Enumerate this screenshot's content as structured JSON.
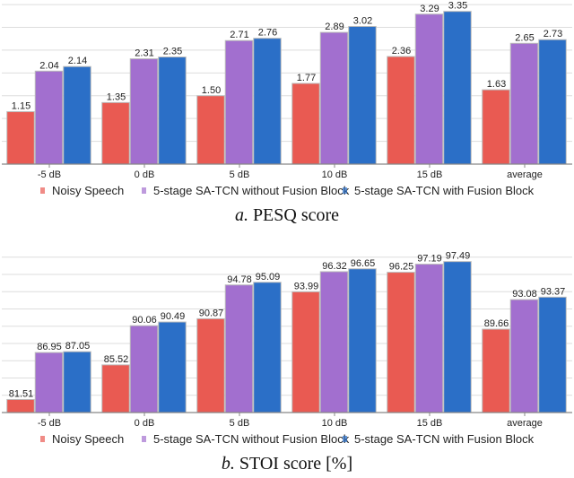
{
  "colors": {
    "Noisy Speech": "#e95a52",
    "without": "#a26fcf",
    "with": "#2b6fc7",
    "grid": "#dddddd",
    "axis": "#888888"
  },
  "chart_data": [
    {
      "type": "bar",
      "caption_letter": "a.",
      "caption_text": "PESQ score",
      "categories": [
        "-5 dB",
        "0 dB",
        "5 dB",
        "10 dB",
        "15 dB",
        "average"
      ],
      "series": [
        {
          "name": "Noisy Speech",
          "values": [
            1.15,
            1.35,
            1.5,
            1.77,
            2.36,
            1.63
          ],
          "labels": [
            "1.15",
            "1.35",
            "1.50",
            "1.77",
            "2.36",
            "1.63"
          ]
        },
        {
          "name": "5-stage SA-TCN without Fusion Block",
          "values": [
            2.04,
            2.31,
            2.71,
            2.89,
            3.29,
            2.65
          ],
          "labels": [
            "2.04",
            "2.31",
            "2.71",
            "2.89",
            "3.29",
            "2.65"
          ]
        },
        {
          "name": "5-stage SA-TCN with Fusion Block",
          "values": [
            2.14,
            2.35,
            2.76,
            3.02,
            3.35,
            2.73
          ],
          "labels": [
            "2.14",
            "2.35",
            "2.76",
            "3.02",
            "3.35",
            "2.73"
          ]
        }
      ],
      "ylim": [
        0,
        3.6
      ],
      "grid_step": 0.5,
      "grid": true,
      "legend": "bottom"
    },
    {
      "type": "bar",
      "caption_letter": "b.",
      "caption_text": "STOI score [%]",
      "categories": [
        "-5 dB",
        "0 dB",
        "5 dB",
        "10 dB",
        "15 dB",
        "average"
      ],
      "series": [
        {
          "name": "Noisy Speech",
          "values": [
            81.51,
            85.52,
            90.87,
            93.99,
            96.25,
            89.66
          ],
          "labels": [
            "81.51",
            "85.52",
            "90.87",
            "93.99",
            "96.25",
            "89.66"
          ]
        },
        {
          "name": "5-stage SA-TCN without Fusion Block",
          "values": [
            86.95,
            90.06,
            94.78,
            96.32,
            97.19,
            93.08
          ],
          "labels": [
            "86.95",
            "90.06",
            "94.78",
            "96.32",
            "97.19",
            "93.08"
          ]
        },
        {
          "name": "5-stage SA-TCN with Fusion Block",
          "values": [
            87.05,
            90.49,
            95.09,
            96.65,
            97.49,
            93.37
          ],
          "labels": [
            "87.05",
            "90.49",
            "95.09",
            "96.65",
            "97.49",
            "93.37"
          ]
        }
      ],
      "ylim": [
        80,
        98.6
      ],
      "grid_step": 2,
      "grid": true,
      "legend": "bottom"
    }
  ]
}
